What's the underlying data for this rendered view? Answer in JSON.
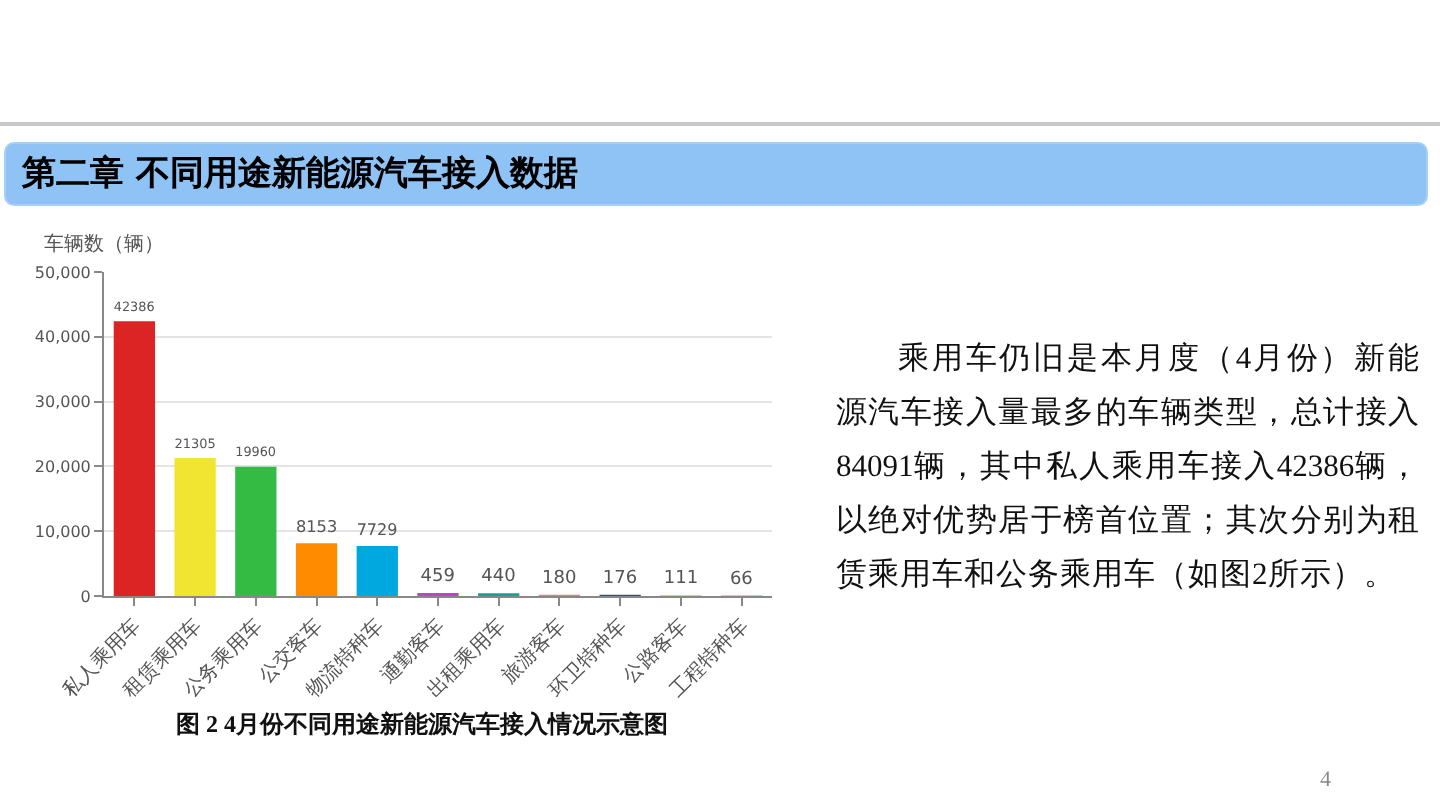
{
  "chart_data": {
    "type": "bar",
    "title": "第二章  不同用途新能源汽车接入数据",
    "ylabel": "车辆数（辆）",
    "categories": [
      "私人乘用车",
      "租赁乘用车",
      "公务乘用车",
      "公交客车",
      "物流特种车",
      "通勤客车",
      "出租乘用车",
      "旅游客车",
      "环卫特种车",
      "公路客车",
      "工程特种车"
    ],
    "values": [
      42386,
      21305,
      19960,
      8153,
      7729,
      459,
      440,
      180,
      176,
      111,
      66
    ],
    "colors": [
      "#dc2424",
      "#f2e531",
      "#33bb44",
      "#ff8c00",
      "#00a8e0",
      "#c040d0",
      "#1aa090",
      "#e08080",
      "#405070",
      "#e0c040",
      "#60b0a0"
    ],
    "ylim": [
      0,
      50000
    ],
    "yticks": [
      0,
      {
        "value": 10000,
        "label": "10,000"
      },
      {
        "value": 20000,
        "label": "20,000"
      },
      {
        "value": 30000,
        "label": "30,000"
      },
      {
        "value": 40000,
        "label": "40,000"
      },
      {
        "value": 50000,
        "label": "50,000"
      }
    ],
    "grid": "y",
    "data_labels": true,
    "annotations": [
      "乘用车仍旧是本月度（4月份）新能源汽车接入量最多的车辆类型，总计接入84091辆，其中私人乘用车接入42386辆，以绝对优势居于榜首位置；其次分别为租赁乘用车和公务乘用车（如图2所示）。",
      "图 2 4月份不同用途新能源汽车接入情况示意图",
      "4"
    ]
  }
}
